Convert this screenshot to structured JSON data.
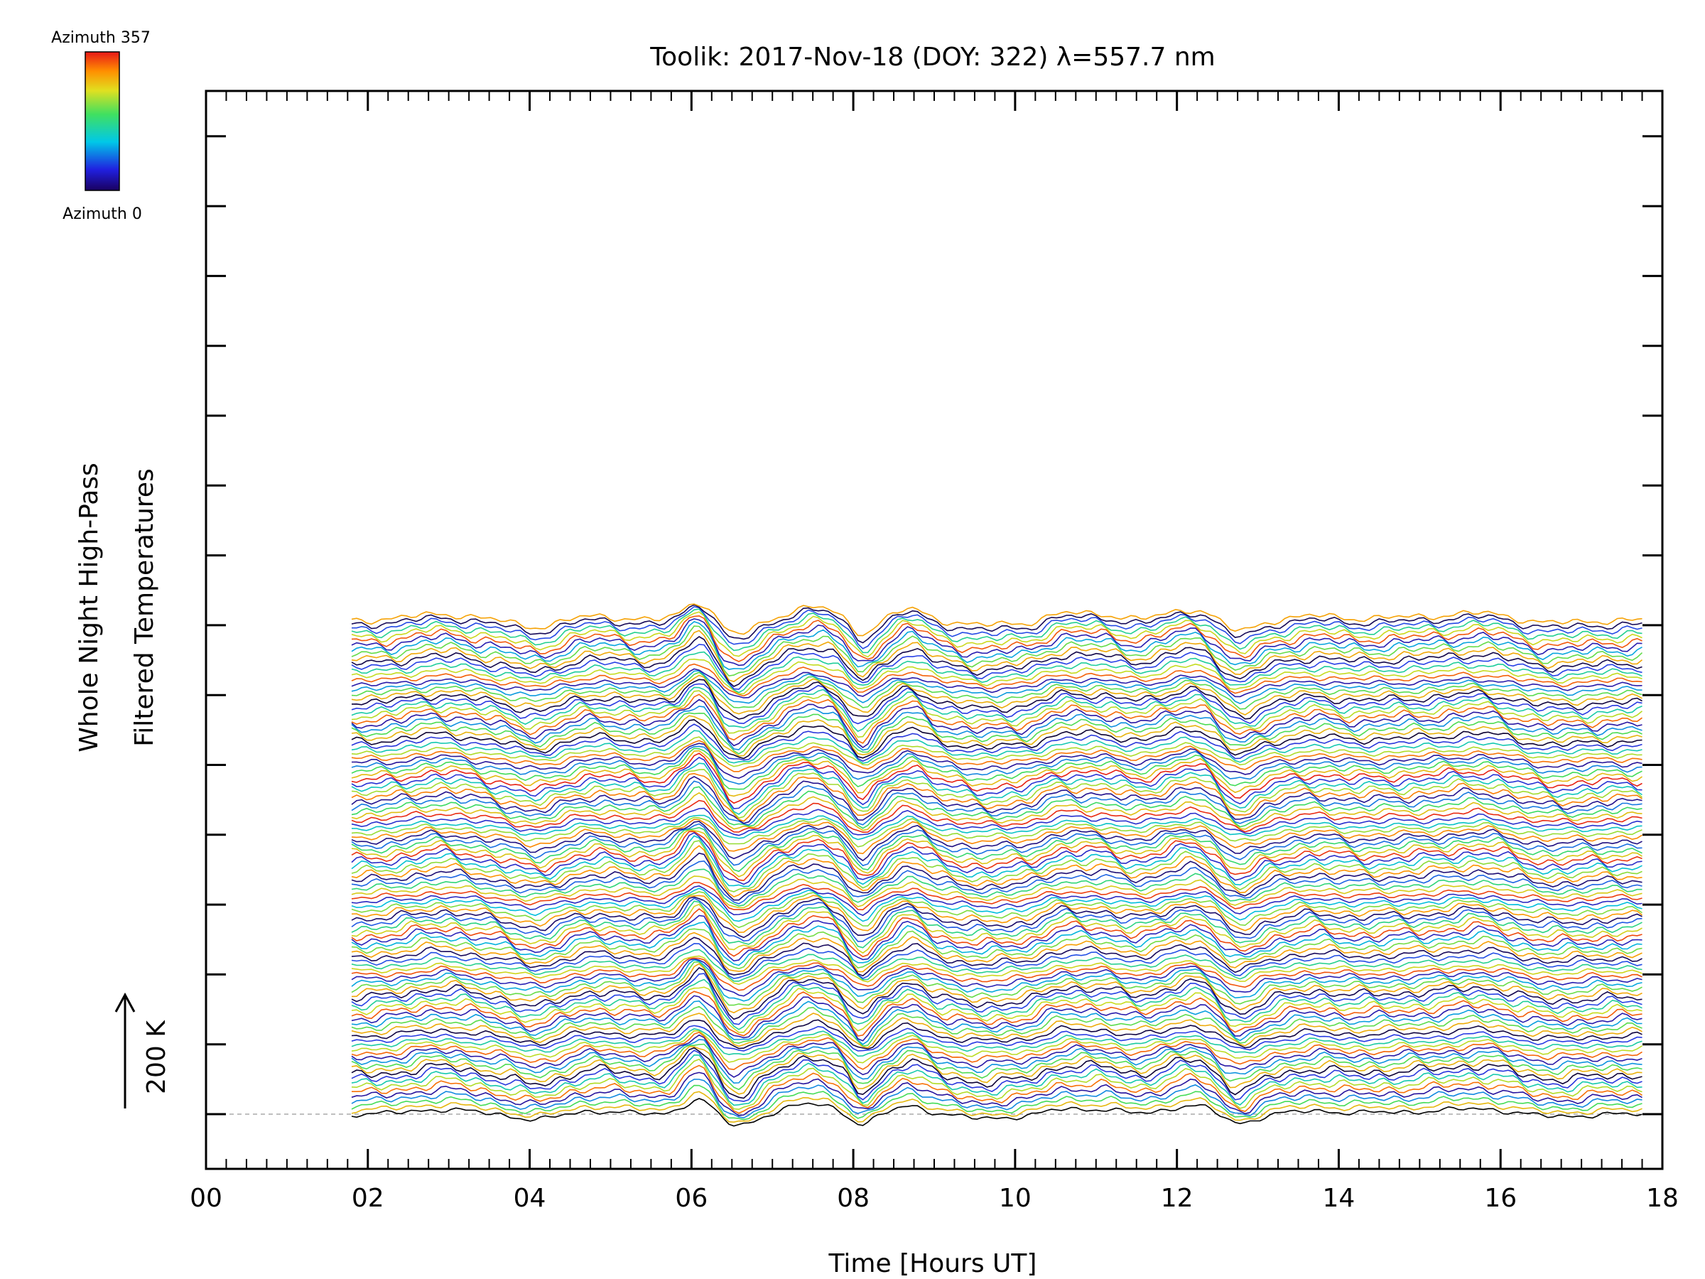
{
  "chart_data": {
    "type": "line",
    "title": "Toolik: 2017-Nov-18 (DOY: 322) λ=557.7 nm",
    "xlabel": "Time [Hours UT]",
    "ylabel_line1": "Whole Night High-Pass",
    "ylabel_line2": "Filtered Temperatures",
    "scale_label": "200 K",
    "xlim": [
      0,
      18
    ],
    "x_ticks": [
      "00",
      "02",
      "04",
      "06",
      "08",
      "10",
      "12",
      "14",
      "16",
      "18"
    ],
    "x_tick_values": [
      0,
      2,
      4,
      6,
      8,
      10,
      12,
      14,
      16,
      18
    ],
    "data_start_hour": 1.8,
    "data_end_hour": 17.75,
    "n_traces": 115,
    "trace_offset_kelvin": 10,
    "colorbar": {
      "top_label": "Azimuth 357",
      "bottom_label": "Azimuth 0",
      "azimuth_range_deg": [
        0,
        357
      ],
      "colormap": "rainbow (blue-green-yellow-red)"
    },
    "features": [
      {
        "hour": 6.2,
        "description": "sharp temperature spike then drop"
      },
      {
        "hour": 8.1,
        "description": "deep minimum between peaks at 7.5 and 8.7"
      },
      {
        "hour": 12.7,
        "description": "step decrease after peak near 12.2"
      }
    ],
    "colors": {
      "axes": "#000000",
      "baseline": "#aaaaaa",
      "background": "#ffffff"
    }
  }
}
